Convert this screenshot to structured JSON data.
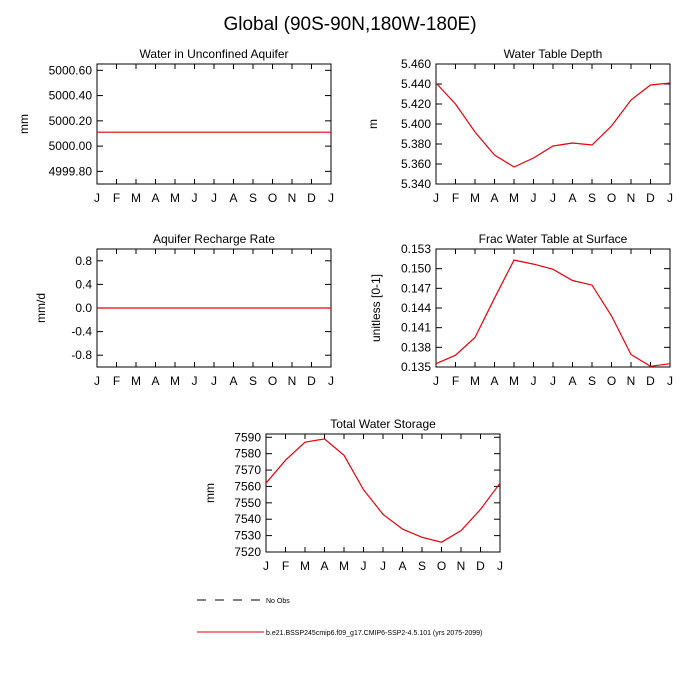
{
  "title": "Global (90S-90N,180W-180E)",
  "months": [
    "J",
    "F",
    "M",
    "A",
    "M",
    "J",
    "J",
    "A",
    "S",
    "O",
    "N",
    "D",
    "J"
  ],
  "legend": {
    "obs_label": "No Obs",
    "model_label": "b.e21.BSSP245cmip6.f09_g17.CMIP6-SSP2-4.5.101 (yrs 2075-2099)",
    "model_color": "#e8000b",
    "obs_color": "#000000"
  },
  "chart_data": [
    {
      "type": "line",
      "title": "Water in Unconfined Aquifer",
      "ylabel": "mm",
      "ylim": [
        4999.7,
        5000.65
      ],
      "yticks": [
        4999.8,
        5000.0,
        5000.2,
        5000.4,
        5000.6
      ],
      "ytick_labels": [
        "4999.80",
        "5000.00",
        "5000.20",
        "5000.40",
        "5000.60"
      ],
      "x": [
        "J",
        "F",
        "M",
        "A",
        "M",
        "J",
        "J",
        "A",
        "S",
        "O",
        "N",
        "D",
        "J"
      ],
      "series": [
        {
          "values": [
            5000.11,
            5000.11,
            5000.11,
            5000.11,
            5000.11,
            5000.11,
            5000.11,
            5000.11,
            5000.11,
            5000.11,
            5000.11,
            5000.11,
            5000.11
          ]
        }
      ]
    },
    {
      "type": "line",
      "title": "Water Table Depth",
      "ylabel": "m",
      "ylim": [
        5.34,
        5.46
      ],
      "yticks": [
        5.34,
        5.36,
        5.38,
        5.4,
        5.42,
        5.44,
        5.46
      ],
      "ytick_labels": [
        "5.340",
        "5.360",
        "5.380",
        "5.400",
        "5.420",
        "5.440",
        "5.460"
      ],
      "x": [
        "J",
        "F",
        "M",
        "A",
        "M",
        "J",
        "J",
        "A",
        "S",
        "O",
        "N",
        "D",
        "J"
      ],
      "series": [
        {
          "values": [
            5.441,
            5.42,
            5.392,
            5.369,
            5.357,
            5.366,
            5.378,
            5.381,
            5.379,
            5.398,
            5.424,
            5.439,
            5.441
          ]
        }
      ]
    },
    {
      "type": "line",
      "title": "Aquifer Recharge Rate",
      "ylabel": "mm/d",
      "ylim": [
        -1.0,
        1.0
      ],
      "yticks": [
        -0.8,
        -0.4,
        0.0,
        0.4,
        0.8
      ],
      "ytick_labels": [
        "-0.8",
        "-0.4",
        "0.0",
        "0.4",
        "0.8"
      ],
      "x": [
        "J",
        "F",
        "M",
        "A",
        "M",
        "J",
        "J",
        "A",
        "S",
        "O",
        "N",
        "D",
        "J"
      ],
      "series": [
        {
          "values": [
            0,
            0,
            0,
            0,
            0,
            0,
            0,
            0,
            0,
            0,
            0,
            0,
            0
          ]
        }
      ]
    },
    {
      "type": "line",
      "title": "Frac Water Table at Surface",
      "ylabel": "unitless [0-1]",
      "ylim": [
        0.135,
        0.153
      ],
      "yticks": [
        0.135,
        0.138,
        0.141,
        0.144,
        0.147,
        0.15,
        0.153
      ],
      "ytick_labels": [
        "0.135",
        "0.138",
        "0.141",
        "0.144",
        "0.147",
        "0.150",
        "0.153"
      ],
      "x": [
        "J",
        "F",
        "M",
        "A",
        "M",
        "J",
        "J",
        "A",
        "S",
        "O",
        "N",
        "D",
        "J"
      ],
      "series": [
        {
          "values": [
            0.1355,
            0.1368,
            0.1395,
            0.1455,
            0.1513,
            0.1507,
            0.1499,
            0.1482,
            0.1475,
            0.1428,
            0.1369,
            0.1351,
            0.1355
          ]
        }
      ]
    },
    {
      "type": "line",
      "title": "Total Water Storage",
      "ylabel": "mm",
      "ylim": [
        7520,
        7592
      ],
      "yticks": [
        7520,
        7530,
        7540,
        7550,
        7560,
        7570,
        7580,
        7590
      ],
      "ytick_labels": [
        "7520",
        "7530",
        "7540",
        "7550",
        "7560",
        "7570",
        "7580",
        "7590"
      ],
      "x": [
        "J",
        "F",
        "M",
        "A",
        "M",
        "J",
        "J",
        "A",
        "S",
        "O",
        "N",
        "D",
        "J"
      ],
      "series": [
        {
          "values": [
            7562,
            7576,
            7587,
            7589,
            7579,
            7558,
            7543,
            7534,
            7529,
            7526,
            7533,
            7546,
            7562
          ]
        }
      ]
    }
  ]
}
